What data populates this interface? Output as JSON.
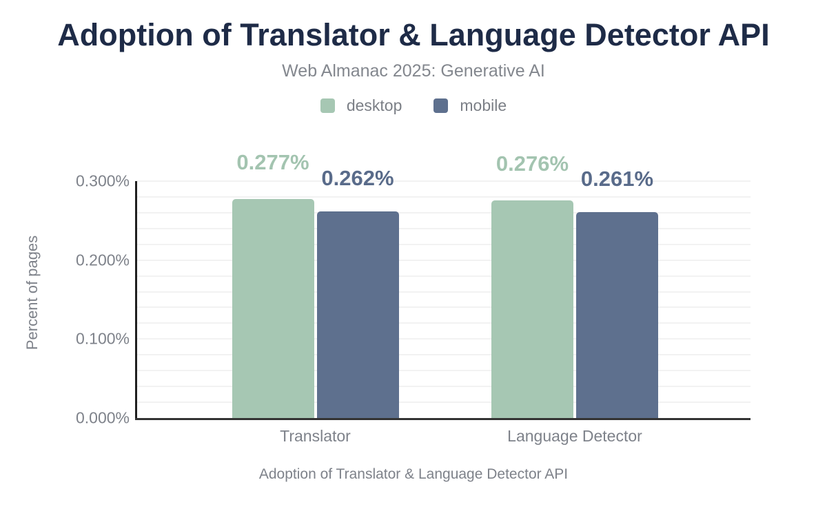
{
  "header": {
    "title": "Adoption of Translator & Language Detector API",
    "subtitle": "Web Almanac 2025: Generative AI"
  },
  "legend": {
    "position": "top",
    "items": [
      {
        "label": "desktop",
        "color": "#a6c7b3"
      },
      {
        "label": "mobile",
        "color": "#5e708e"
      }
    ]
  },
  "chart_data": {
    "type": "bar",
    "title": "Adoption of Translator & Language Detector API",
    "subtitle": "Web Almanac 2025: Generative AI",
    "categories": [
      "Translator",
      "Language Detector"
    ],
    "series": [
      {
        "name": "desktop",
        "color": "#a6c7b3",
        "label_color": "#a3c4b0",
        "values": [
          0.277,
          0.276
        ],
        "value_labels": [
          "0.277%",
          "0.276%"
        ]
      },
      {
        "name": "mobile",
        "color": "#5e708e",
        "label_color": "#596b8a",
        "values": [
          0.262,
          0.261
        ],
        "value_labels": [
          "0.262%",
          "0.261%"
        ]
      }
    ],
    "xlabel": "Adoption of Translator & Language Detector API",
    "ylabel": "Percent of pages",
    "ylim": [
      0,
      0.3
    ],
    "yticks": [
      {
        "value": 0.3,
        "label": "0.300%"
      },
      {
        "value": 0.2,
        "label": "0.200%"
      },
      {
        "value": 0.1,
        "label": "0.100%"
      },
      {
        "value": 0.0,
        "label": "0.000%"
      }
    ],
    "y_minor_step": 0.02,
    "grid": "horizontal-minor",
    "legend_position": "top",
    "value_unit": "%"
  }
}
